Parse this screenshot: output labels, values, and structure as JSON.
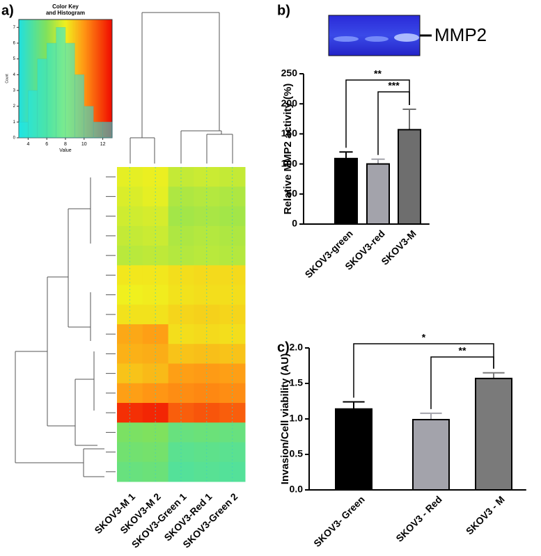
{
  "chart_data": [
    {
      "type": "heatmap",
      "panel": "a)",
      "columns": [
        "SKOV3-M 1",
        "SKOV3-M 2",
        "SKOV3-Green 1",
        "SKOV3-Red 1",
        "SKOV3-Green 2"
      ],
      "values": [
        [
          7.8,
          7.9,
          7.2,
          7.3,
          7.2
        ],
        [
          7.6,
          7.8,
          6.8,
          6.9,
          6.8
        ],
        [
          7.4,
          7.5,
          6.6,
          6.7,
          6.6
        ],
        [
          7.2,
          7.3,
          6.8,
          6.9,
          6.8
        ],
        [
          7.0,
          7.1,
          6.9,
          7.0,
          6.9
        ],
        [
          8.2,
          8.2,
          8.4,
          8.5,
          8.5
        ],
        [
          8.0,
          8.1,
          8.3,
          8.4,
          8.4
        ],
        [
          8.3,
          8.3,
          8.6,
          8.7,
          8.6
        ],
        [
          9.6,
          9.8,
          8.4,
          8.5,
          8.4
        ],
        [
          9.4,
          9.5,
          9.0,
          9.1,
          9.0
        ],
        [
          9.0,
          9.2,
          9.8,
          9.9,
          9.8
        ],
        [
          9.8,
          10,
          10.2,
          10.3,
          10.2
        ],
        [
          12.2,
          12.4,
          11.2,
          11.4,
          11.2
        ],
        [
          5.8,
          5.9,
          5.2,
          5.3,
          5.2
        ],
        [
          5.5,
          5.6,
          4.8,
          4.9,
          4.8
        ],
        [
          5.2,
          5.3,
          4.6,
          4.7,
          4.6
        ]
      ],
      "color_key": {
        "title": [
          "Color Key",
          "and Histogram"
        ],
        "xlabel": "Value",
        "ylabel": "Count",
        "xlim": [
          3,
          13
        ],
        "xticks": [
          4,
          6,
          8,
          10,
          12
        ],
        "ylim": [
          0,
          7.5
        ],
        "yticks": [
          0,
          1,
          2,
          3,
          4,
          5,
          6,
          7
        ],
        "bins": [
          3,
          4,
          5,
          6,
          7,
          8,
          9,
          10,
          11,
          12,
          13
        ],
        "counts": [
          1,
          3,
          5,
          6,
          7,
          6,
          4,
          2,
          1,
          1
        ]
      }
    },
    {
      "type": "bar",
      "panel": "b)",
      "gel_label": "MMP2",
      "ylabel": "Relative MMP2 activity (%)",
      "categories": [
        "SKOV3-green",
        "SKOV3-red",
        "SKOV3-M"
      ],
      "values": [
        109,
        100,
        157
      ],
      "errors": [
        11,
        8,
        34
      ],
      "colors": [
        "#000000",
        "#a3a3ab",
        "#6e6e6e"
      ],
      "ylim": [
        0,
        250
      ],
      "yticks": [
        0,
        50,
        100,
        150,
        200,
        250
      ],
      "annotations": [
        "**",
        "***"
      ]
    },
    {
      "type": "bar",
      "panel": "c)",
      "ylabel": "Invasion/Cell viability (AU)",
      "categories": [
        "SKOV3- Green",
        "SKOV3 - Red",
        "SKOV3 - M"
      ],
      "values": [
        1.14,
        0.99,
        1.57
      ],
      "errors": [
        0.1,
        0.09,
        0.08
      ],
      "colors": [
        "#000000",
        "#a3a3ab",
        "#7a7a7a"
      ],
      "ylim": [
        0,
        2
      ],
      "yticks": [
        {
          "value": 0,
          "label": "0.0"
        },
        0.5,
        {
          "value": 1,
          "label": "1.0"
        },
        1.5,
        {
          "value": 2,
          "label": "2.0"
        }
      ],
      "annotations": [
        "*",
        "**"
      ]
    }
  ]
}
